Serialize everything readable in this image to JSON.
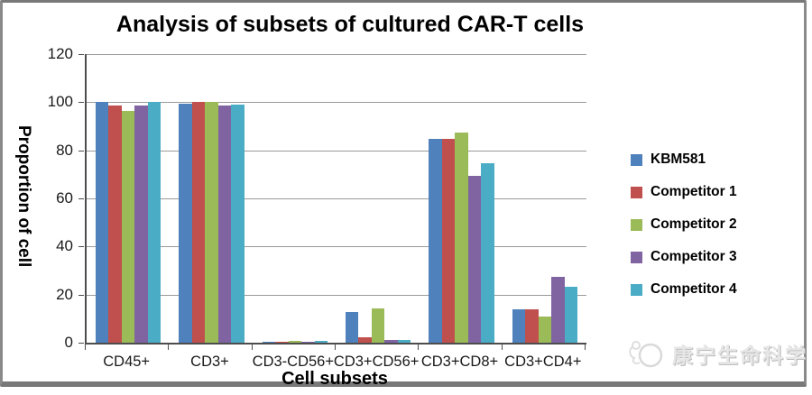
{
  "watermark": {
    "company": "康宁生命科学"
  },
  "chart_data": {
    "type": "bar",
    "title": "Analysis of subsets of cultured CAR-T cells",
    "xlabel": "Cell subsets",
    "ylabel": "Proportion of cell",
    "ylim": [
      0,
      120
    ],
    "yticks": [
      0,
      20,
      40,
      60,
      80,
      100,
      120
    ],
    "grid": true,
    "legend_position": "right",
    "categories": [
      "CD45+",
      "CD3+",
      "CD3-CD56+",
      "CD3+CD56+",
      "CD3+CD8+",
      "CD3+CD4+"
    ],
    "series": [
      {
        "name": "KBM581",
        "color": "#4F81BD",
        "values": [
          100,
          99.2,
          0.3,
          12.8,
          84.8,
          13.8
        ]
      },
      {
        "name": "Competitor 1",
        "color": "#C0504D",
        "values": [
          98.6,
          100,
          0.3,
          2.1,
          84.6,
          13.7
        ]
      },
      {
        "name": "Competitor 2",
        "color": "#9BBB59",
        "values": [
          96.2,
          100,
          0.7,
          14.1,
          87.3,
          11.0
        ]
      },
      {
        "name": "Competitor 3",
        "color": "#8064A2",
        "values": [
          98.5,
          98.6,
          0.5,
          1.0,
          69.4,
          27.5
        ]
      },
      {
        "name": "Competitor 4",
        "color": "#4BACC6",
        "values": [
          100,
          99.0,
          0.6,
          1.3,
          74.7,
          23.2
        ]
      }
    ]
  }
}
